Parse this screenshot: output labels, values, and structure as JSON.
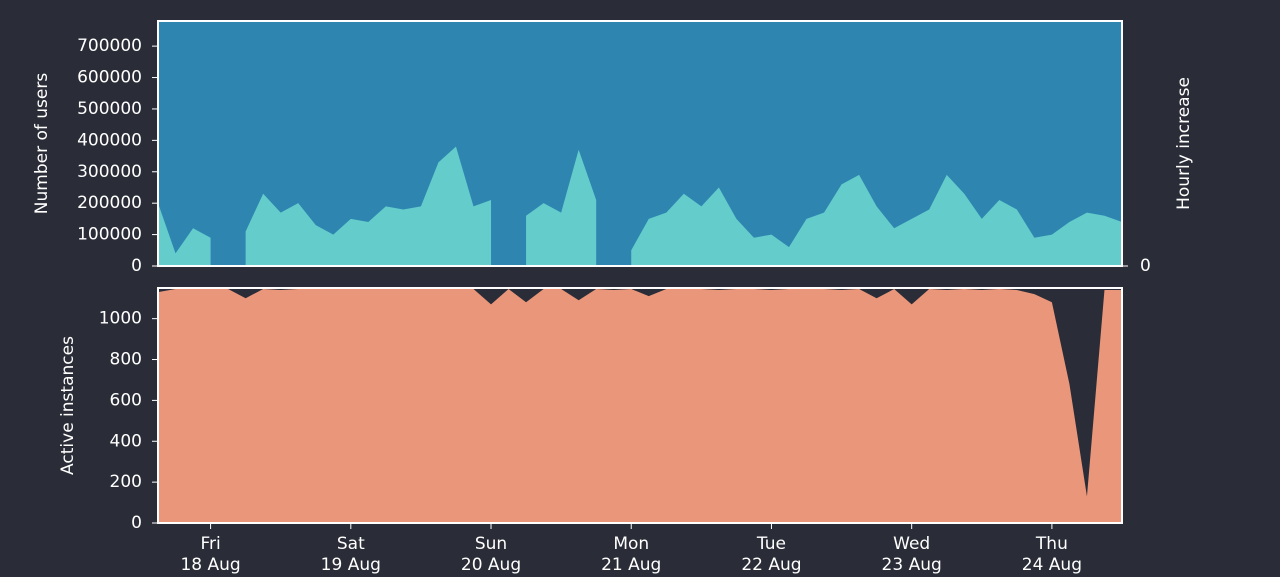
{
  "chart_data": [
    {
      "type": "area",
      "ylabel": "Number of users",
      "ylabel_color": "#7ec8e3",
      "y2label": "Hourly increase",
      "y2label_color": "#64d4c4",
      "x": [
        0.625,
        0.75,
        0.875,
        1,
        1.125,
        1.25,
        1.375,
        1.5,
        1.625,
        1.75,
        1.875,
        2,
        2.125,
        2.25,
        2.375,
        2.5,
        2.625,
        2.75,
        2.875,
        3,
        3.125,
        3.25,
        3.375,
        3.5,
        3.625,
        3.75,
        3.875,
        4,
        4.125,
        4.25,
        4.375,
        4.5,
        4.625,
        4.75,
        4.875,
        5,
        5.125,
        5.25,
        5.375,
        5.5,
        5.625,
        5.75,
        5.875,
        6,
        6.125,
        6.25,
        6.375,
        6.5,
        6.625,
        6.75,
        6.875,
        7,
        7.125,
        7.25,
        7.375,
        7.5
      ],
      "xlim": [
        0.625,
        7.5
      ],
      "ylim": [
        0,
        780000
      ],
      "yticks": [
        0,
        100000,
        200000,
        300000,
        400000,
        500000,
        600000,
        700000
      ],
      "y2lim": [
        0,
        780000
      ],
      "y2ticks": [
        0
      ],
      "series": [
        {
          "color": "#2e86b0",
          "axis": "y",
          "values": [
            780000,
            780000,
            780000,
            780000,
            780000,
            780000,
            780000,
            780000,
            780000,
            780000,
            780000,
            780000,
            780000,
            780000,
            780000,
            780000,
            780000,
            780000,
            780000,
            780000,
            780000,
            780000,
            780000,
            780000,
            780000,
            780000,
            780000,
            780000,
            780000,
            780000,
            780000,
            780000,
            780000,
            780000,
            780000,
            780000,
            780000,
            780000,
            780000,
            780000,
            780000,
            780000,
            780000,
            780000,
            780000,
            780000,
            780000,
            780000,
            780000,
            780000,
            780000,
            780000,
            780000,
            780000,
            780000,
            780000
          ]
        },
        {
          "color": "#64cdcc",
          "axis": "y2",
          "values": [
            200000,
            40000,
            120000,
            90000,
            null,
            110000,
            230000,
            170000,
            200000,
            130000,
            100000,
            150000,
            140000,
            190000,
            180000,
            190000,
            330000,
            380000,
            190000,
            210000,
            null,
            160000,
            200000,
            170000,
            370000,
            210000,
            null,
            50000,
            150000,
            170000,
            230000,
            190000,
            250000,
            150000,
            90000,
            100000,
            60000,
            150000,
            170000,
            260000,
            290000,
            190000,
            120000,
            150000,
            180000,
            290000,
            230000,
            150000,
            210000,
            180000,
            90000,
            100000,
            140000,
            170000,
            160000,
            140000
          ]
        }
      ]
    },
    {
      "type": "area",
      "ylabel": "Active instances",
      "ylabel_color": "#e9967a",
      "x": [
        0.625,
        0.75,
        0.875,
        1,
        1.125,
        1.25,
        1.375,
        1.5,
        1.625,
        1.75,
        1.875,
        2,
        2.125,
        2.25,
        2.375,
        2.5,
        2.625,
        2.75,
        2.875,
        3,
        3.125,
        3.25,
        3.375,
        3.5,
        3.625,
        3.75,
        3.875,
        4,
        4.125,
        4.25,
        4.375,
        4.5,
        4.625,
        4.75,
        4.875,
        5,
        5.125,
        5.25,
        5.375,
        5.5,
        5.625,
        5.75,
        5.875,
        6,
        6.125,
        6.25,
        6.375,
        6.5,
        6.625,
        6.75,
        6.875,
        7,
        7.125,
        7.25,
        7.375,
        7.5
      ],
      "xlim": [
        0.625,
        7.5
      ],
      "ylim": [
        0,
        1150
      ],
      "yticks": [
        0,
        200,
        400,
        600,
        800,
        1000
      ],
      "xticks": [
        {
          "value": 1,
          "label": [
            "Fri",
            "18 Aug"
          ]
        },
        {
          "value": 2,
          "label": [
            "Sat",
            "19 Aug"
          ]
        },
        {
          "value": 3,
          "label": [
            "Sun",
            "20 Aug"
          ]
        },
        {
          "value": 4,
          "label": [
            "Mon",
            "21 Aug"
          ]
        },
        {
          "value": 5,
          "label": [
            "Tue",
            "22 Aug"
          ]
        },
        {
          "value": 6,
          "label": [
            "Wed",
            "23 Aug"
          ]
        },
        {
          "value": 7,
          "label": [
            "Thu",
            "24 Aug"
          ]
        }
      ],
      "series": [
        {
          "color": "#e9967a",
          "axis": "y",
          "values": [
            1130,
            1145,
            1145,
            1145,
            1145,
            1100,
            1145,
            1140,
            1145,
            1145,
            1145,
            1145,
            1145,
            1145,
            1145,
            1145,
            1145,
            1145,
            1145,
            1070,
            1145,
            1080,
            1145,
            1145,
            1090,
            1145,
            1140,
            1145,
            1110,
            1145,
            1145,
            1145,
            1140,
            1145,
            1145,
            1140,
            1145,
            1145,
            1145,
            1140,
            1145,
            1100,
            1145,
            1070,
            1145,
            1140,
            1145,
            1140,
            1145,
            1140,
            1120,
            1080,
            680,
            130,
            1140,
            1140
          ]
        }
      ]
    }
  ]
}
